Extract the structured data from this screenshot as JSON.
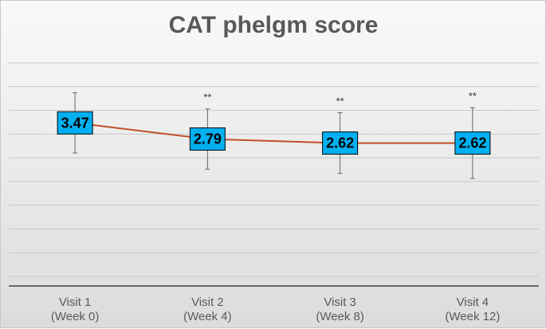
{
  "chart_data": {
    "type": "line",
    "title": "CAT phelgm score",
    "categories": [
      "Visit 1\n(Week 0)",
      "Visit 2\n(Week 4)",
      "Visit 3\n(Week 8)",
      "Visit 4\n(Week 12)"
    ],
    "series": [
      {
        "values": [
          3.47,
          2.79,
          2.62,
          2.62
        ],
        "data_labels": [
          "3.47",
          "2.79",
          "2.62",
          "2.62"
        ],
        "error_low": [
          1.27,
          1.27,
          1.28,
          1.49
        ],
        "error_high": [
          1.27,
          1.27,
          1.28,
          1.49
        ]
      }
    ],
    "annotations": [
      "",
      "**",
      "**",
      "**"
    ],
    "ylim": [
      -3.4,
      6.7
    ],
    "y_axis_labels_visible": false,
    "grid": true,
    "line_color": "#c0502a",
    "label_fill_color": "#00b0f0",
    "gridline_color": "#c8c8c8",
    "error_bar_color": "#666666"
  }
}
